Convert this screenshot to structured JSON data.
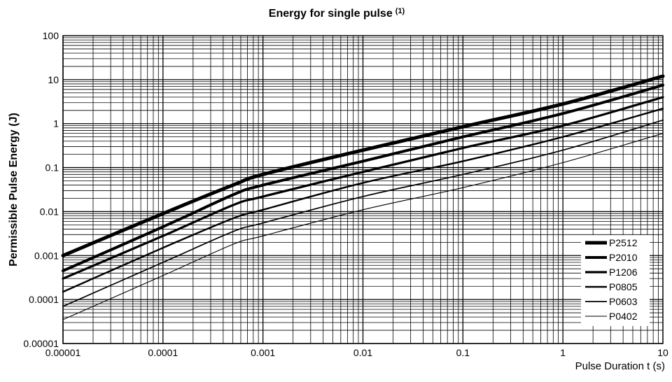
{
  "chart_data": {
    "type": "line",
    "title": "Energy for single pulse",
    "title_superscript": "(1)",
    "xlabel": "Pulse Duration t (s)",
    "ylabel": "Permissible Pulse Energy (J)",
    "x_scale": "log",
    "y_scale": "log",
    "xlim": [
      1e-05,
      10
    ],
    "ylim": [
      1e-05,
      100
    ],
    "x_ticks": [
      "0.00001",
      "0.0001",
      "0.001",
      "0.01",
      "0.1",
      "1",
      "10"
    ],
    "y_ticks": [
      "0.00001",
      "0.0001",
      "0.001",
      "0.01",
      "0.1",
      "1",
      "10",
      "100"
    ],
    "grid": true,
    "legend_position": "bottom-right",
    "series": [
      {
        "name": "P2512",
        "line_weight": "heaviest",
        "x": [
          1e-05,
          0.0001,
          0.0005,
          0.001,
          0.01,
          0.1,
          1,
          10
        ],
        "y": [
          0.001,
          0.009,
          0.04,
          0.07,
          0.25,
          0.85,
          2.8,
          12
        ]
      },
      {
        "name": "P2010",
        "line_weight": "heavy",
        "x": [
          1e-05,
          0.0001,
          0.0005,
          0.001,
          0.01,
          0.1,
          1,
          10
        ],
        "y": [
          0.00045,
          0.0045,
          0.024,
          0.04,
          0.14,
          0.5,
          1.7,
          7.5
        ]
      },
      {
        "name": "P1206",
        "line_weight": "medium-heavy",
        "x": [
          1e-05,
          0.0001,
          0.0005,
          0.001,
          0.01,
          0.1,
          1,
          10
        ],
        "y": [
          0.0003,
          0.0028,
          0.014,
          0.022,
          0.08,
          0.28,
          0.9,
          4
        ]
      },
      {
        "name": "P0805",
        "line_weight": "medium",
        "x": [
          1e-05,
          0.0001,
          0.0005,
          0.001,
          0.01,
          0.1,
          1,
          10
        ],
        "y": [
          0.00015,
          0.0015,
          0.007,
          0.011,
          0.045,
          0.14,
          0.5,
          2.2
        ]
      },
      {
        "name": "P0603",
        "line_weight": "light",
        "x": [
          1e-05,
          0.0001,
          0.0005,
          0.001,
          0.01,
          0.1,
          1,
          10
        ],
        "y": [
          7e-05,
          0.0007,
          0.0035,
          0.0055,
          0.022,
          0.07,
          0.25,
          1.2
        ]
      },
      {
        "name": "P0402",
        "line_weight": "lightest",
        "x": [
          1e-05,
          0.0001,
          0.0005,
          0.001,
          0.01,
          0.1,
          1,
          10
        ],
        "y": [
          3.5e-05,
          0.00035,
          0.0018,
          0.0028,
          0.011,
          0.035,
          0.13,
          0.6
        ]
      }
    ]
  }
}
